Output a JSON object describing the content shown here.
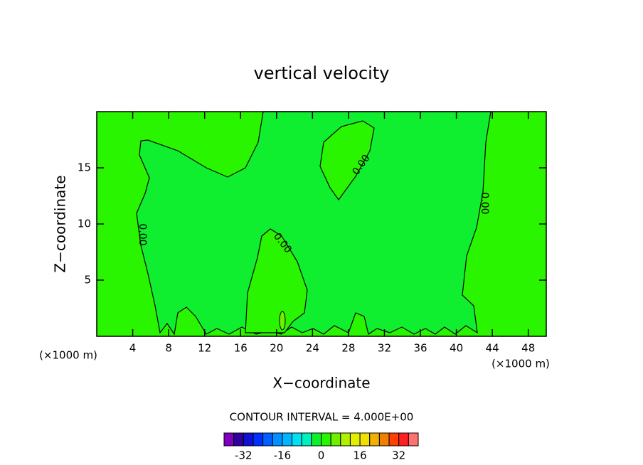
{
  "chart_data": {
    "type": "contour",
    "title": "vertical velocity",
    "x_label": "X−coordinate",
    "y_label": "Z−coordinate",
    "x_unit_label": "(×1000 m)",
    "y_unit_label": "(×1000 m)",
    "xlim": [
      0,
      50
    ],
    "xticks": [
      4,
      8,
      12,
      16,
      20,
      24,
      28,
      32,
      36,
      40,
      44,
      48
    ],
    "ylim": [
      0,
      20
    ],
    "yticks": [
      5,
      10,
      15
    ],
    "contour_labels": [
      "0.00",
      "0.00",
      "0.00",
      "0.00"
    ],
    "contour_interval_label": "CONTOUR INTERVAL = 4.000E+00",
    "colorbar": {
      "levels": [
        -40,
        -36,
        -32,
        -28,
        -24,
        -20,
        -16,
        -12,
        -8,
        -4,
        0,
        4,
        8,
        12,
        16,
        20,
        24,
        28,
        32,
        36,
        40
      ],
      "colors": [
        "#8000c0",
        "#3000a0",
        "#1010d0",
        "#0030ff",
        "#0060ff",
        "#0090ff",
        "#00b4ff",
        "#00e0f0",
        "#00f0c0",
        "#10ee30",
        "#2af500",
        "#70f000",
        "#b0f000",
        "#e0f000",
        "#f0e000",
        "#f0b000",
        "#f08000",
        "#ff4000",
        "#ff2020",
        "#ff7070"
      ],
      "ticks": [
        -32,
        -16,
        0,
        16,
        32
      ]
    }
  }
}
